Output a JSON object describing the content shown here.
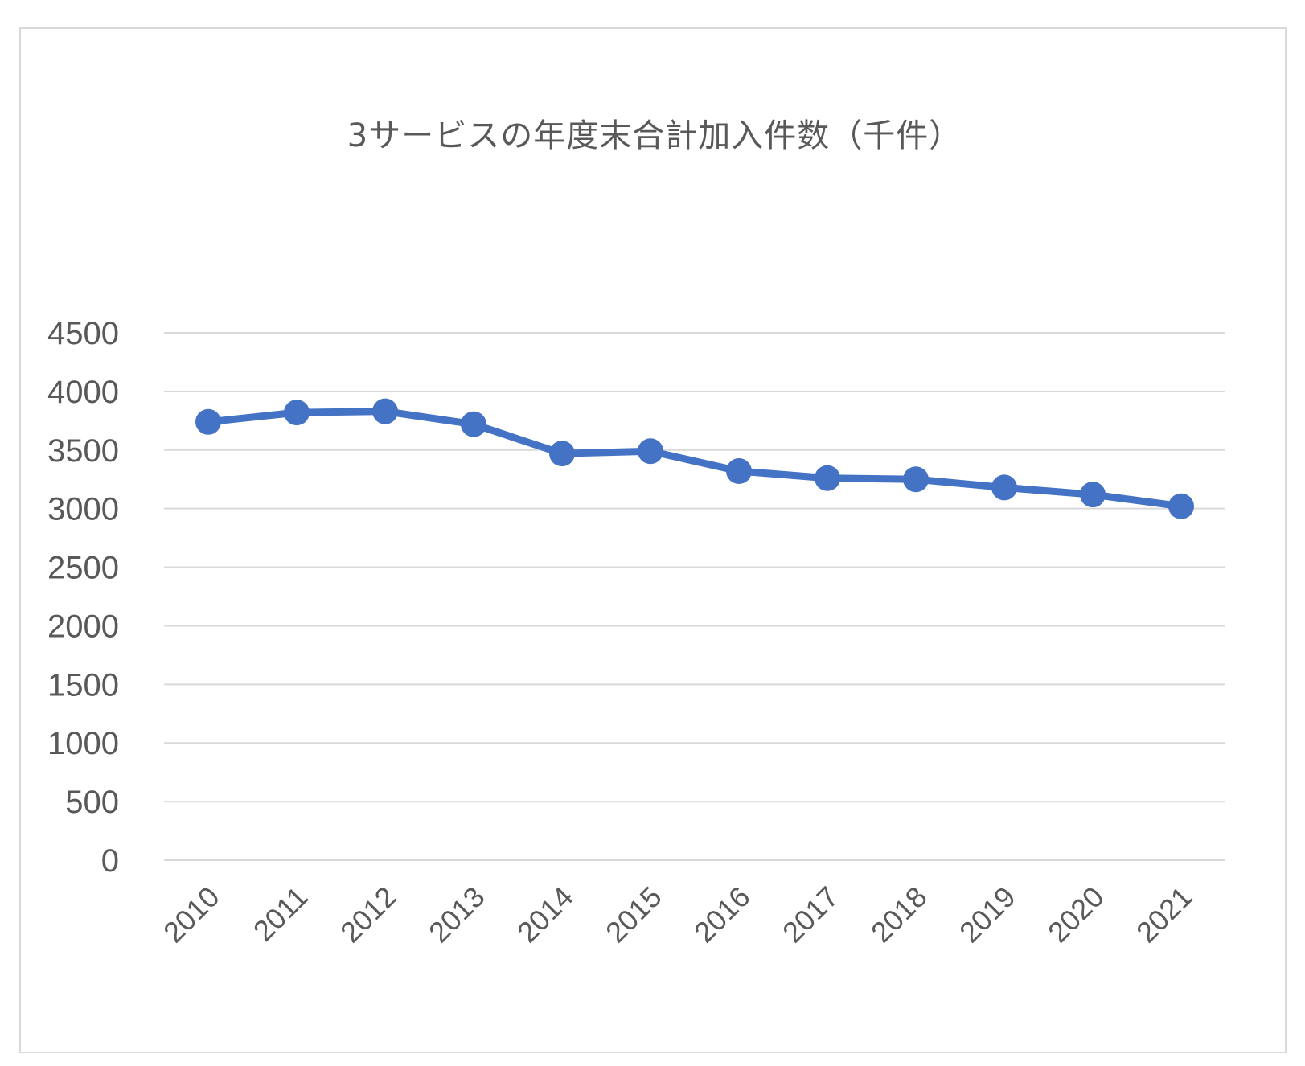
{
  "chart_data": {
    "type": "line",
    "title": "3サービスの年度末合計加入件数（千件）",
    "xlabel": "",
    "ylabel": "",
    "categories": [
      "2010",
      "2011",
      "2012",
      "2013",
      "2014",
      "2015",
      "2016",
      "2017",
      "2018",
      "2019",
      "2020",
      "2021"
    ],
    "series": [
      {
        "values": [
          3740,
          3820,
          3830,
          3720,
          3470,
          3490,
          3320,
          3260,
          3250,
          3180,
          3120,
          3020
        ]
      }
    ],
    "ylim": [
      0,
      4500
    ],
    "yticks": [
      0,
      500,
      1000,
      1500,
      2000,
      2500,
      3000,
      3500,
      4000,
      4500
    ],
    "grid": true,
    "legend": "none",
    "colors": {
      "line": "#4472C4",
      "grid": "#d9d9d9",
      "text": "#595959",
      "border": "#d9d9d9"
    }
  }
}
